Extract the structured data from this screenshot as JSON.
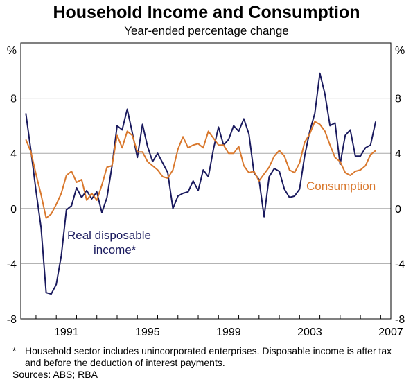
{
  "title": "Household Income and Consumption",
  "subtitle": "Year-ended percentage change",
  "footnote_marker": "*",
  "footnote": "Household sector includes unincorporated enterprises. Disposable income is after tax and before the deduction of interest payments.",
  "sources": "Sources: ABS; RBA",
  "colors": {
    "income": "#1a1a5e",
    "consumption": "#d9782d",
    "grid": "#a8a8a8",
    "frame": "#000000"
  },
  "chart_data": {
    "type": "line",
    "title": "Household Income and Consumption",
    "subtitle": "Year-ended percentage change",
    "y_unit_left": "%",
    "y_unit_right": "%",
    "ylim": [
      -8,
      12
    ],
    "yticks": [
      -8,
      -4,
      0,
      4,
      8
    ],
    "xlim": [
      1989.25,
      2007.5
    ],
    "xticks": [
      1991,
      1995,
      1999,
      2003,
      2007
    ],
    "grid": "horizontal",
    "series": [
      {
        "name": "Real disposable income*",
        "label_lines": [
          "Real disposable",
          "income*"
        ],
        "color": "#1a1a5e",
        "x": [
          1989.5,
          1989.75,
          1990.0,
          1990.25,
          1990.5,
          1990.75,
          1991.0,
          1991.25,
          1991.5,
          1991.75,
          1992.0,
          1992.25,
          1992.5,
          1992.75,
          1993.0,
          1993.25,
          1993.5,
          1993.75,
          1994.0,
          1994.25,
          1994.5,
          1994.75,
          1995.0,
          1995.25,
          1995.5,
          1995.75,
          1996.0,
          1996.25,
          1996.5,
          1996.75,
          1997.0,
          1997.25,
          1997.5,
          1997.75,
          1998.0,
          1998.25,
          1998.5,
          1998.75,
          1999.0,
          1999.25,
          1999.5,
          1999.75,
          2000.0,
          2000.25,
          2000.5,
          2000.75,
          2001.0,
          2001.25,
          2001.5,
          2001.75,
          2002.0,
          2002.25,
          2002.5,
          2002.75,
          2003.0,
          2003.25,
          2003.5,
          2003.75,
          2004.0,
          2004.25,
          2004.5,
          2004.75,
          2005.0,
          2005.25,
          2005.5,
          2005.75,
          2006.0,
          2006.25,
          2006.5,
          2006.75
        ],
        "values": [
          6.9,
          4.2,
          1.3,
          -1.4,
          -6.1,
          -6.2,
          -5.5,
          -3.4,
          -0.1,
          0.2,
          1.5,
          0.8,
          1.3,
          0.7,
          1.2,
          -0.3,
          0.8,
          3.1,
          6.0,
          5.7,
          7.2,
          5.5,
          3.7,
          6.1,
          4.5,
          3.4,
          4.0,
          3.3,
          2.6,
          0.0,
          0.9,
          1.1,
          1.2,
          2.0,
          1.3,
          2.8,
          2.3,
          4.3,
          5.9,
          4.6,
          5.0,
          6.0,
          5.6,
          6.5,
          5.4,
          2.6,
          2.1,
          -0.6,
          2.3,
          2.9,
          2.7,
          1.4,
          0.8,
          0.9,
          1.4,
          3.8,
          5.6,
          6.9,
          9.8,
          8.3,
          6.0,
          6.2,
          3.2,
          5.3,
          5.7,
          3.8,
          3.8,
          4.4,
          4.6,
          6.3
        ]
      },
      {
        "name": "Consumption",
        "label_lines": [
          "Consumption"
        ],
        "color": "#d9782d",
        "x": [
          1989.5,
          1989.75,
          1990.0,
          1990.25,
          1990.5,
          1990.75,
          1991.0,
          1991.25,
          1991.5,
          1991.75,
          1992.0,
          1992.25,
          1992.5,
          1992.75,
          1993.0,
          1993.25,
          1993.5,
          1993.75,
          1994.0,
          1994.25,
          1994.5,
          1994.75,
          1995.0,
          1995.25,
          1995.5,
          1995.75,
          1996.0,
          1996.25,
          1996.5,
          1996.75,
          1997.0,
          1997.25,
          1997.5,
          1997.75,
          1998.0,
          1998.25,
          1998.5,
          1998.75,
          1999.0,
          1999.25,
          1999.5,
          1999.75,
          2000.0,
          2000.25,
          2000.5,
          2000.75,
          2001.0,
          2001.25,
          2001.5,
          2001.75,
          2002.0,
          2002.25,
          2002.5,
          2002.75,
          2003.0,
          2003.25,
          2003.5,
          2003.75,
          2004.0,
          2004.25,
          2004.5,
          2004.75,
          2005.0,
          2005.25,
          2005.5,
          2005.75,
          2006.0,
          2006.25,
          2006.5,
          2006.75
        ],
        "values": [
          5.0,
          4.1,
          2.5,
          1.0,
          -0.7,
          -0.4,
          0.3,
          1.1,
          2.4,
          2.7,
          1.9,
          2.1,
          0.6,
          1.1,
          0.6,
          1.7,
          3.0,
          3.1,
          5.3,
          4.4,
          5.6,
          5.3,
          4.1,
          4.1,
          3.4,
          3.1,
          2.8,
          2.3,
          2.2,
          2.8,
          4.3,
          5.2,
          4.4,
          4.6,
          4.7,
          4.4,
          5.6,
          5.1,
          4.6,
          4.6,
          4.0,
          4.0,
          4.5,
          3.1,
          2.6,
          2.7,
          2.0,
          2.5,
          3.0,
          3.8,
          4.2,
          3.8,
          2.8,
          2.6,
          3.3,
          4.8,
          5.4,
          6.3,
          6.1,
          5.6,
          4.6,
          3.7,
          3.4,
          2.6,
          2.4,
          2.7,
          2.8,
          3.1,
          3.9,
          4.2
        ]
      }
    ]
  }
}
